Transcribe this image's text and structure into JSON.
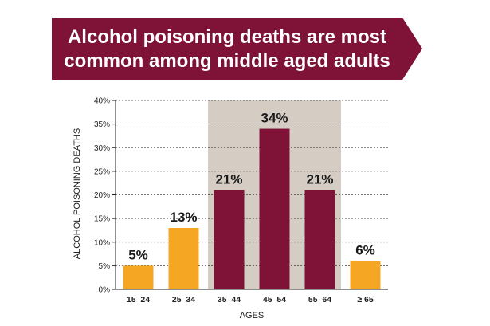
{
  "chart_data": {
    "type": "bar",
    "title": [
      "Alcohol poisoning deaths are most",
      "common among middle aged adults"
    ],
    "xlabel": "AGES",
    "ylabel": "ALCOHOL POISONING DEATHS",
    "categories": [
      "15–24",
      "25–34",
      "35–44",
      "45–54",
      "55–64",
      "≥ 65"
    ],
    "values": [
      5,
      13,
      21,
      34,
      21,
      6
    ],
    "data_labels": [
      "5%",
      "13%",
      "21%",
      "34%",
      "21%",
      "6%"
    ],
    "highlighted": [
      false,
      false,
      true,
      true,
      true,
      false
    ],
    "ylim": [
      0,
      40
    ],
    "yticks": [
      0,
      5,
      10,
      15,
      20,
      25,
      30,
      35,
      40
    ],
    "ytick_labels": [
      "0%",
      "5%",
      "10%",
      "15%",
      "20%",
      "25%",
      "30%",
      "35%",
      "40%"
    ],
    "grid": true,
    "highlight_band": [
      "35–44",
      "55–64"
    ]
  },
  "colors": {
    "banner": "#7e1237",
    "highlight_bar": "#7e1237",
    "normal_bar": "#f5a623",
    "band": "#d5cdc4",
    "grid": "#444444"
  }
}
